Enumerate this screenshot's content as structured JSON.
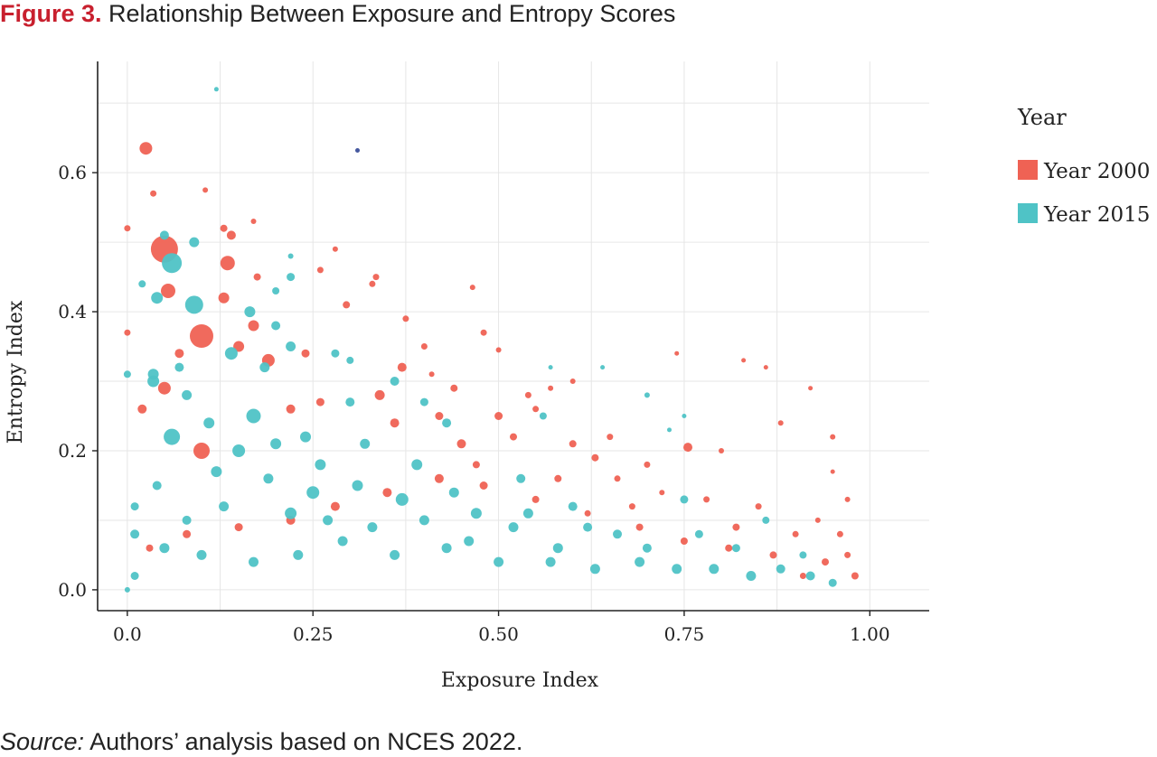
{
  "figure": {
    "number": "Figure 3.",
    "title": "Relationship Between Exposure and Entropy Scores"
  },
  "source": {
    "label": "Source:",
    "text": "Authors’ analysis based on NCES 2022."
  },
  "colors": {
    "year_2000": "#ef6254",
    "year_2015": "#4fc3c6",
    "outlier": "#3b4f9a",
    "grid": "#e6e6e6",
    "axis": "#222222"
  },
  "chart_data": {
    "type": "scatter",
    "xlabel": "Exposure Index",
    "ylabel": "Entropy Index",
    "xlim": [
      -0.04,
      1.08
    ],
    "ylim": [
      -0.03,
      0.76
    ],
    "x_ticks": [
      0.0,
      0.25,
      0.5,
      0.75,
      1.0
    ],
    "x_tick_labels": [
      "0.0",
      "0.25",
      "0.50",
      "0.75",
      "1.00"
    ],
    "y_ticks": [
      0.0,
      0.2,
      0.4,
      0.6
    ],
    "y_tick_labels": [
      "0.0",
      "0.2",
      "0.4",
      "0.6"
    ],
    "grid": true,
    "legend": {
      "title": "Year",
      "placement": "right",
      "entries": [
        "Year 2000",
        "Year 2015"
      ]
    },
    "series": [
      {
        "name": "Year 2000",
        "color": "#ef6254",
        "points": [
          [
            0.025,
            0.635,
            12
          ],
          [
            0.035,
            0.57,
            5
          ],
          [
            0.0,
            0.52,
            5
          ],
          [
            0.05,
            0.49,
            28
          ],
          [
            0.055,
            0.43,
            14
          ],
          [
            0.1,
            0.365,
            24
          ],
          [
            0.135,
            0.47,
            14
          ],
          [
            0.13,
            0.52,
            6
          ],
          [
            0.14,
            0.51,
            8
          ],
          [
            0.105,
            0.575,
            4
          ],
          [
            0.17,
            0.53,
            4
          ],
          [
            0.175,
            0.45,
            6
          ],
          [
            0.13,
            0.42,
            10
          ],
          [
            0.15,
            0.35,
            10
          ],
          [
            0.0,
            0.37,
            5
          ],
          [
            0.07,
            0.34,
            8
          ],
          [
            0.05,
            0.29,
            12
          ],
          [
            0.02,
            0.26,
            8
          ],
          [
            0.1,
            0.2,
            16
          ],
          [
            0.17,
            0.38,
            10
          ],
          [
            0.19,
            0.33,
            12
          ],
          [
            0.22,
            0.26,
            8
          ],
          [
            0.24,
            0.34,
            7
          ],
          [
            0.26,
            0.46,
            5
          ],
          [
            0.28,
            0.49,
            4
          ],
          [
            0.295,
            0.41,
            6
          ],
          [
            0.335,
            0.45,
            5
          ],
          [
            0.33,
            0.44,
            5
          ],
          [
            0.375,
            0.39,
            5
          ],
          [
            0.37,
            0.32,
            8
          ],
          [
            0.34,
            0.28,
            9
          ],
          [
            0.4,
            0.35,
            5
          ],
          [
            0.41,
            0.31,
            4
          ],
          [
            0.44,
            0.29,
            6
          ],
          [
            0.465,
            0.435,
            4
          ],
          [
            0.48,
            0.37,
            5
          ],
          [
            0.5,
            0.345,
            4
          ],
          [
            0.45,
            0.21,
            8
          ],
          [
            0.5,
            0.25,
            7
          ],
          [
            0.52,
            0.22,
            6
          ],
          [
            0.54,
            0.28,
            5
          ],
          [
            0.55,
            0.26,
            5
          ],
          [
            0.57,
            0.29,
            4
          ],
          [
            0.6,
            0.3,
            4
          ],
          [
            0.6,
            0.21,
            6
          ],
          [
            0.63,
            0.19,
            6
          ],
          [
            0.65,
            0.22,
            5
          ],
          [
            0.66,
            0.16,
            5
          ],
          [
            0.7,
            0.18,
            5
          ],
          [
            0.72,
            0.14,
            4
          ],
          [
            0.74,
            0.34,
            3
          ],
          [
            0.755,
            0.205,
            8
          ],
          [
            0.8,
            0.2,
            4
          ],
          [
            0.83,
            0.33,
            3
          ],
          [
            0.86,
            0.32,
            3
          ],
          [
            0.88,
            0.24,
            4
          ],
          [
            0.92,
            0.29,
            3
          ],
          [
            0.95,
            0.22,
            4
          ],
          [
            0.95,
            0.17,
            3
          ],
          [
            0.97,
            0.13,
            4
          ],
          [
            0.96,
            0.08,
            5
          ],
          [
            0.97,
            0.05,
            5
          ],
          [
            0.94,
            0.04,
            6
          ],
          [
            0.98,
            0.02,
            6
          ],
          [
            0.93,
            0.1,
            4
          ],
          [
            0.82,
            0.09,
            6
          ],
          [
            0.85,
            0.12,
            5
          ],
          [
            0.78,
            0.13,
            5
          ],
          [
            0.68,
            0.12,
            5
          ],
          [
            0.62,
            0.11,
            5
          ],
          [
            0.55,
            0.13,
            6
          ],
          [
            0.48,
            0.15,
            7
          ],
          [
            0.42,
            0.16,
            8
          ],
          [
            0.35,
            0.14,
            8
          ],
          [
            0.28,
            0.12,
            8
          ],
          [
            0.22,
            0.1,
            8
          ],
          [
            0.15,
            0.09,
            7
          ],
          [
            0.08,
            0.08,
            7
          ],
          [
            0.03,
            0.06,
            6
          ],
          [
            0.26,
            0.27,
            7
          ],
          [
            0.36,
            0.24,
            8
          ],
          [
            0.42,
            0.25,
            7
          ],
          [
            0.47,
            0.18,
            6
          ],
          [
            0.58,
            0.16,
            6
          ],
          [
            0.69,
            0.09,
            6
          ],
          [
            0.75,
            0.07,
            6
          ],
          [
            0.81,
            0.06,
            6
          ],
          [
            0.87,
            0.05,
            6
          ],
          [
            0.9,
            0.08,
            5
          ],
          [
            0.91,
            0.02,
            5
          ]
        ]
      },
      {
        "name": "Year 2015",
        "color": "#4fc3c6",
        "points": [
          [
            0.12,
            0.72,
            3
          ],
          [
            0.06,
            0.47,
            20
          ],
          [
            0.09,
            0.41,
            18
          ],
          [
            0.05,
            0.51,
            8
          ],
          [
            0.09,
            0.5,
            9
          ],
          [
            0.04,
            0.42,
            11
          ],
          [
            0.02,
            0.44,
            6
          ],
          [
            0.165,
            0.4,
            10
          ],
          [
            0.14,
            0.34,
            12
          ],
          [
            0.185,
            0.32,
            9
          ],
          [
            0.22,
            0.45,
            7
          ],
          [
            0.2,
            0.43,
            6
          ],
          [
            0.22,
            0.48,
            4
          ],
          [
            0.22,
            0.35,
            9
          ],
          [
            0.2,
            0.38,
            8
          ],
          [
            0.28,
            0.34,
            7
          ],
          [
            0.3,
            0.33,
            6
          ],
          [
            0.0,
            0.31,
            6
          ],
          [
            0.035,
            0.3,
            11
          ],
          [
            0.035,
            0.31,
            10
          ],
          [
            0.07,
            0.32,
            8
          ],
          [
            0.06,
            0.22,
            16
          ],
          [
            0.17,
            0.25,
            14
          ],
          [
            0.15,
            0.2,
            12
          ],
          [
            0.12,
            0.17,
            10
          ],
          [
            0.24,
            0.22,
            10
          ],
          [
            0.25,
            0.14,
            12
          ],
          [
            0.22,
            0.11,
            11
          ],
          [
            0.3,
            0.27,
            8
          ],
          [
            0.36,
            0.3,
            8
          ],
          [
            0.32,
            0.21,
            9
          ],
          [
            0.4,
            0.27,
            7
          ],
          [
            0.43,
            0.24,
            8
          ],
          [
            0.37,
            0.13,
            12
          ],
          [
            0.39,
            0.18,
            10
          ],
          [
            0.47,
            0.11,
            10
          ],
          [
            0.53,
            0.16,
            8
          ],
          [
            0.56,
            0.25,
            6
          ],
          [
            0.57,
            0.32,
            3
          ],
          [
            0.6,
            0.12,
            8
          ],
          [
            0.64,
            0.32,
            3
          ],
          [
            0.7,
            0.28,
            4
          ],
          [
            0.75,
            0.25,
            3
          ],
          [
            0.73,
            0.23,
            3
          ],
          [
            0.75,
            0.13,
            7
          ],
          [
            0.66,
            0.08,
            8
          ],
          [
            0.58,
            0.06,
            9
          ],
          [
            0.5,
            0.04,
            9
          ],
          [
            0.43,
            0.06,
            9
          ],
          [
            0.36,
            0.05,
            9
          ],
          [
            0.29,
            0.07,
            9
          ],
          [
            0.23,
            0.05,
            9
          ],
          [
            0.17,
            0.04,
            9
          ],
          [
            0.1,
            0.05,
            9
          ],
          [
            0.05,
            0.06,
            9
          ],
          [
            0.01,
            0.08,
            8
          ],
          [
            0.01,
            0.12,
            7
          ],
          [
            0.01,
            0.02,
            7
          ],
          [
            0.0,
            0.0,
            4
          ],
          [
            0.08,
            0.1,
            8
          ],
          [
            0.13,
            0.12,
            9
          ],
          [
            0.19,
            0.16,
            9
          ],
          [
            0.27,
            0.1,
            9
          ],
          [
            0.33,
            0.09,
            9
          ],
          [
            0.4,
            0.1,
            9
          ],
          [
            0.46,
            0.07,
            9
          ],
          [
            0.52,
            0.09,
            9
          ],
          [
            0.57,
            0.04,
            9
          ],
          [
            0.63,
            0.03,
            9
          ],
          [
            0.69,
            0.04,
            9
          ],
          [
            0.74,
            0.03,
            9
          ],
          [
            0.79,
            0.03,
            9
          ],
          [
            0.84,
            0.02,
            9
          ],
          [
            0.88,
            0.03,
            8
          ],
          [
            0.92,
            0.02,
            8
          ],
          [
            0.95,
            0.01,
            7
          ],
          [
            0.7,
            0.06,
            8
          ],
          [
            0.77,
            0.08,
            7
          ],
          [
            0.82,
            0.06,
            7
          ],
          [
            0.86,
            0.1,
            6
          ],
          [
            0.91,
            0.05,
            6
          ],
          [
            0.62,
            0.09,
            8
          ],
          [
            0.54,
            0.11,
            9
          ],
          [
            0.44,
            0.14,
            9
          ],
          [
            0.31,
            0.15,
            10
          ],
          [
            0.2,
            0.21,
            10
          ],
          [
            0.11,
            0.24,
            10
          ],
          [
            0.04,
            0.15,
            8
          ],
          [
            0.08,
            0.28,
            9
          ],
          [
            0.26,
            0.18,
            10
          ]
        ]
      },
      {
        "name": "",
        "color": "#3b4f9a",
        "points": [
          [
            0.31,
            0.632,
            3
          ]
        ]
      }
    ]
  }
}
